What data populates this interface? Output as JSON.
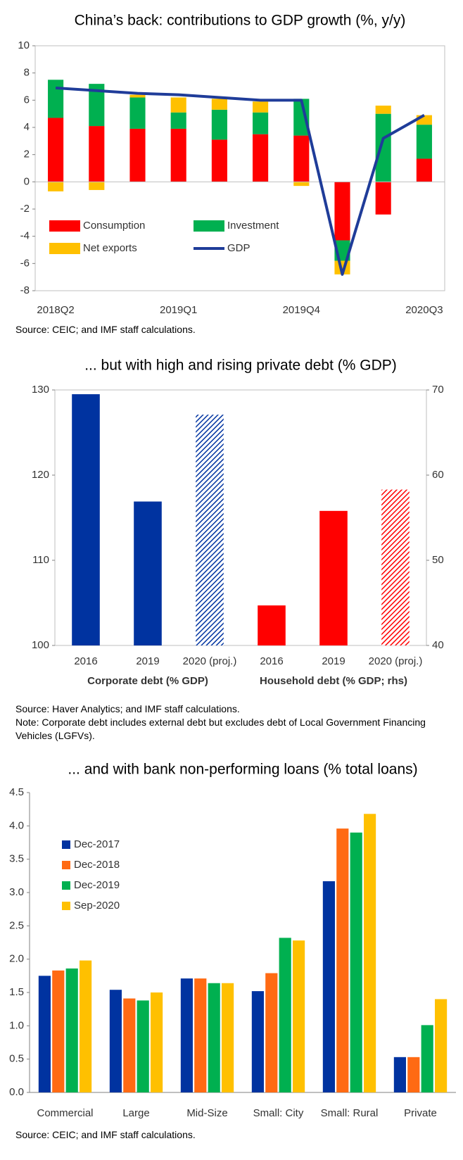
{
  "chart_data": [
    {
      "type": "bar",
      "stacked": true,
      "title": "China’s back: contributions to GDP growth (%, y/y)",
      "categories": [
        "2018Q2",
        null,
        null,
        "2019Q1",
        null,
        null,
        "2019Q4",
        null,
        null,
        "2020Q3"
      ],
      "series": [
        {
          "name": "Consumption",
          "color": "#ff0000",
          "values": [
            4.7,
            4.1,
            3.9,
            3.9,
            3.1,
            3.5,
            3.4,
            -4.3,
            -2.4,
            1.7
          ]
        },
        {
          "name": "Investment",
          "color": "#00b050",
          "values": [
            2.8,
            3.1,
            2.3,
            1.2,
            2.2,
            1.6,
            2.7,
            -1.5,
            5.0,
            2.5
          ]
        },
        {
          "name": "Net exports",
          "color": "#ffc000",
          "values": [
            -0.7,
            -0.6,
            0.2,
            1.1,
            0.8,
            0.8,
            -0.3,
            -1.0,
            0.6,
            0.7
          ]
        },
        {
          "name": "GDP",
          "type": "line",
          "color": "#1f3c99",
          "values": [
            6.9,
            6.7,
            6.5,
            6.4,
            6.2,
            6.0,
            6.0,
            -6.8,
            3.2,
            4.9
          ]
        }
      ],
      "ylim": [
        -8,
        10
      ],
      "yticks": [
        -8,
        -6,
        -4,
        -2,
        0,
        2,
        4,
        6,
        8,
        10
      ],
      "legend": "lower left",
      "source": "Source: CEIC; and IMF staff calculations."
    },
    {
      "type": "bar",
      "title": "... but with high and rising private debt (% GDP)",
      "categories": [
        "2016",
        "2019",
        "2020 (proj.)",
        "2016",
        "2019",
        "2020 (proj.)"
      ],
      "hatched": [
        false,
        false,
        true,
        false,
        false,
        true
      ],
      "series": [
        {
          "name": "Corporate debt (% GDP)",
          "color": "#0033a0",
          "values": [
            129.5,
            116.9,
            127.1,
            null,
            null,
            null
          ]
        },
        {
          "name": "Household debt (% GDP; rhs)",
          "color": "#ff0000",
          "axis": "y2",
          "values": [
            null,
            null,
            null,
            44.7,
            55.8,
            58.3
          ]
        }
      ],
      "ylim": [
        100,
        130
      ],
      "yticks": [
        100,
        110,
        120,
        130
      ],
      "y2lim": [
        40,
        70
      ],
      "y2ticks": [
        40,
        50,
        60,
        70
      ],
      "source": "Source: Haver Analytics; and IMF staff calculations.",
      "note": "Note: Corporate debt includes external debt but excludes debt of Local Government Financing Vehicles (LGFVs)."
    },
    {
      "type": "bar",
      "title": "... and with bank non-performing loans (% total loans)",
      "categories": [
        "Commercial",
        "Large",
        "Mid-Size",
        "Small: City",
        "Small: Rural",
        "Private"
      ],
      "series": [
        {
          "name": "Dec-2017",
          "color": "#0033a0",
          "values": [
            1.75,
            1.54,
            1.71,
            1.52,
            3.17,
            0.53
          ]
        },
        {
          "name": "Dec-2018",
          "color": "#ff6a13",
          "values": [
            1.83,
            1.41,
            1.71,
            1.79,
            3.96,
            0.53
          ]
        },
        {
          "name": "Dec-2019",
          "color": "#00b050",
          "values": [
            1.86,
            1.38,
            1.64,
            2.32,
            3.9,
            1.01
          ]
        },
        {
          "name": "Sep-2020",
          "color": "#ffc000",
          "values": [
            1.98,
            1.5,
            1.64,
            2.28,
            4.18,
            1.4
          ]
        }
      ],
      "ylim": [
        0,
        4.5
      ],
      "yticks": [
        {
          "value": 0,
          "label": "0.0"
        },
        0.5,
        {
          "value": 1,
          "label": "1.0"
        },
        1.5,
        {
          "value": 2,
          "label": "2.0"
        },
        2.5,
        {
          "value": 3,
          "label": "3.0"
        },
        3.5,
        {
          "value": 4,
          "label": "4.0"
        },
        4.5
      ],
      "legend": "upper left",
      "source": "Source: CEIC; and IMF staff calculations."
    }
  ]
}
